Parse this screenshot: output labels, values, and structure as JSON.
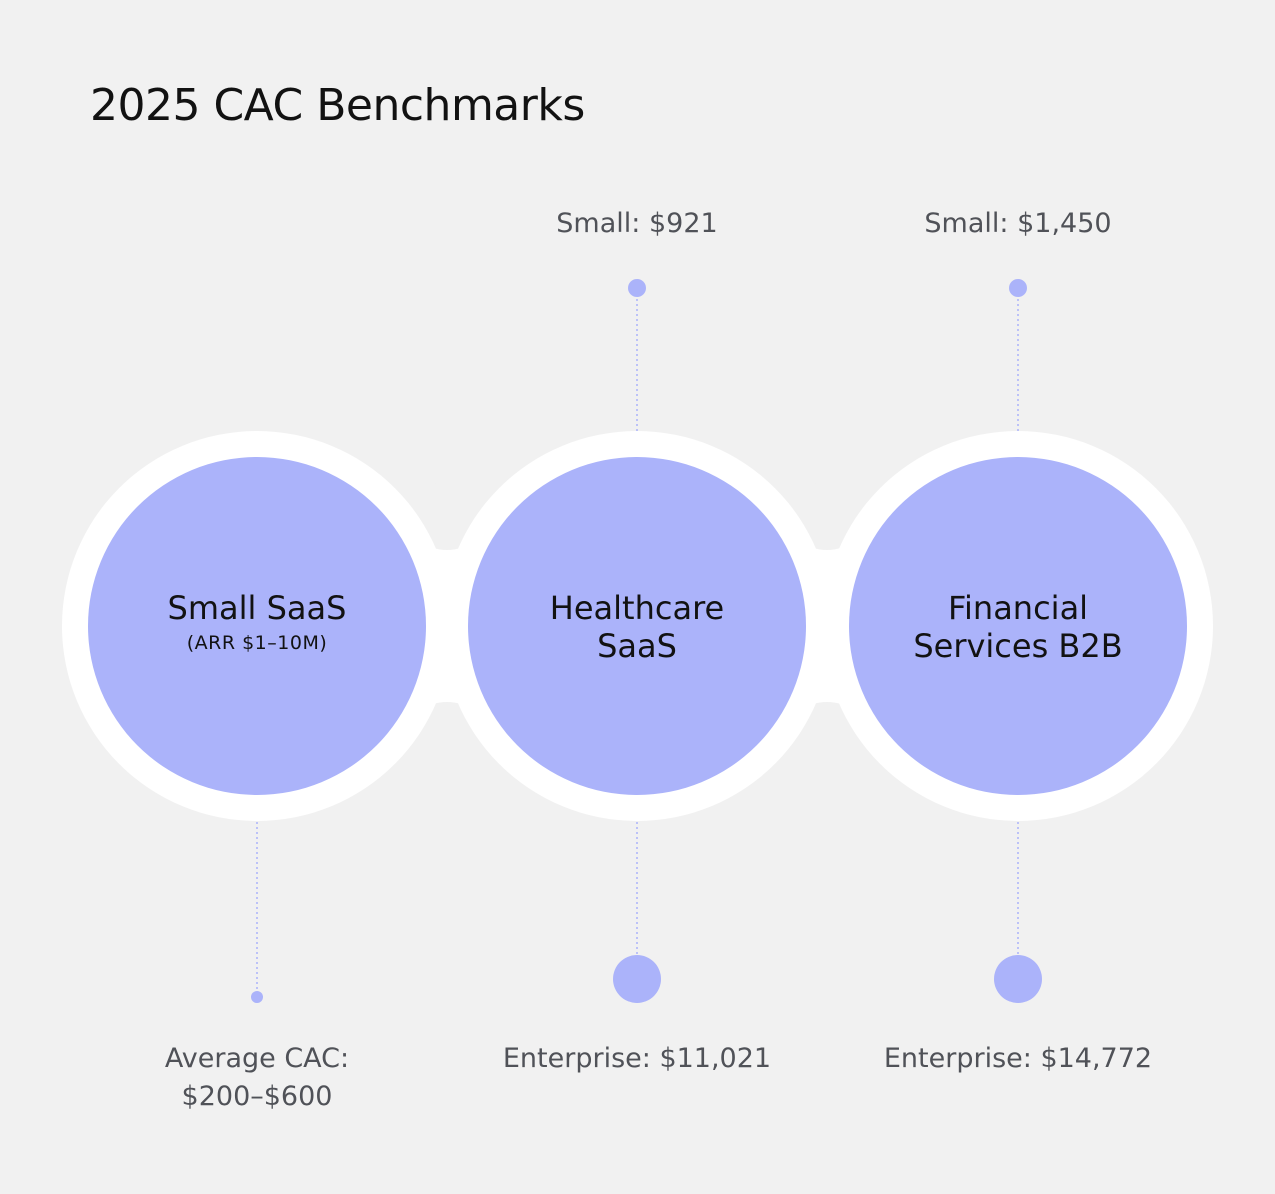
{
  "title": "2025 CAC Benchmarks",
  "colors": {
    "background": "#f1f1f1",
    "circle_fill": "#abb3fa",
    "ring": "#ffffff",
    "accent": "#abb3fa",
    "label_text": "#505258",
    "heading_text": "#121212"
  },
  "segments": [
    {
      "name": "Small SaaS",
      "subtitle": "(ARR $1–10M)",
      "top_label": "",
      "bottom_label": "Average CAC:\n$200–$600"
    },
    {
      "name": "Healthcare\nSaaS",
      "subtitle": "",
      "top_label": "Small: $921",
      "bottom_label": "Enterprise: $11,021"
    },
    {
      "name": "Financial\nServices B2B",
      "subtitle": "",
      "top_label": "Small: $1,450",
      "bottom_label": "Enterprise: $14,772"
    }
  ]
}
